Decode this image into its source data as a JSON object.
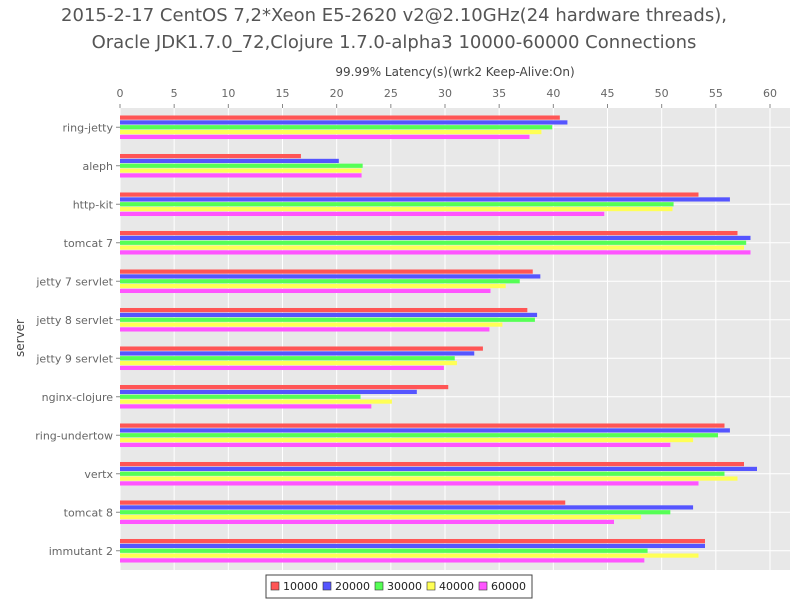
{
  "chart_data": {
    "type": "bar",
    "orientation": "horizontal",
    "title_lines": [
      "2015-2-17 CentOS 7,2*Xeon E5-2620 v2@2.10GHz(24 hardware threads),",
      "Oracle JDK1.7.0_72,Clojure 1.7.0-alpha3 10000-60000 Connections"
    ],
    "xlabel": "99.99% Latency(s)(wrk2 Keep-Alive:On)",
    "ylabel": "server",
    "xlim": [
      0,
      60
    ],
    "xticks": [
      0,
      5,
      10,
      15,
      20,
      25,
      30,
      35,
      40,
      45,
      50,
      55,
      60
    ],
    "grid": true,
    "legend_position": "bottom",
    "categories": [
      "ring-jetty",
      "aleph",
      "http-kit",
      "tomcat 7",
      "jetty 7 servlet",
      "jetty 8 servlet",
      "jetty 9 servlet",
      "nginx-clojure",
      "ring-undertow",
      "vertx",
      "tomcat 8",
      "immutant 2"
    ],
    "series": [
      {
        "name": "10000",
        "color": "#ff5555",
        "values": [
          40.6,
          16.7,
          53.4,
          57.0,
          38.1,
          37.6,
          33.5,
          30.3,
          55.8,
          57.6,
          41.1,
          54.0
        ]
      },
      {
        "name": "20000",
        "color": "#5555ff",
        "values": [
          41.3,
          20.2,
          56.3,
          58.2,
          38.8,
          38.5,
          32.7,
          27.4,
          56.3,
          58.8,
          52.9,
          54.0
        ]
      },
      {
        "name": "30000",
        "color": "#55ff55",
        "values": [
          39.9,
          22.4,
          51.1,
          57.8,
          36.9,
          38.3,
          30.9,
          22.2,
          55.2,
          55.8,
          50.8,
          48.7
        ]
      },
      {
        "name": "40000",
        "color": "#ffff55",
        "values": [
          38.9,
          22.3,
          51.0,
          57.6,
          35.6,
          35.3,
          31.1,
          25.1,
          52.9,
          57.0,
          48.1,
          53.4
        ]
      },
      {
        "name": "60000",
        "color": "#ff55ff",
        "values": [
          37.8,
          22.3,
          44.7,
          58.2,
          34.2,
          34.1,
          29.9,
          23.2,
          50.8,
          53.4,
          45.6,
          48.4
        ]
      }
    ]
  }
}
